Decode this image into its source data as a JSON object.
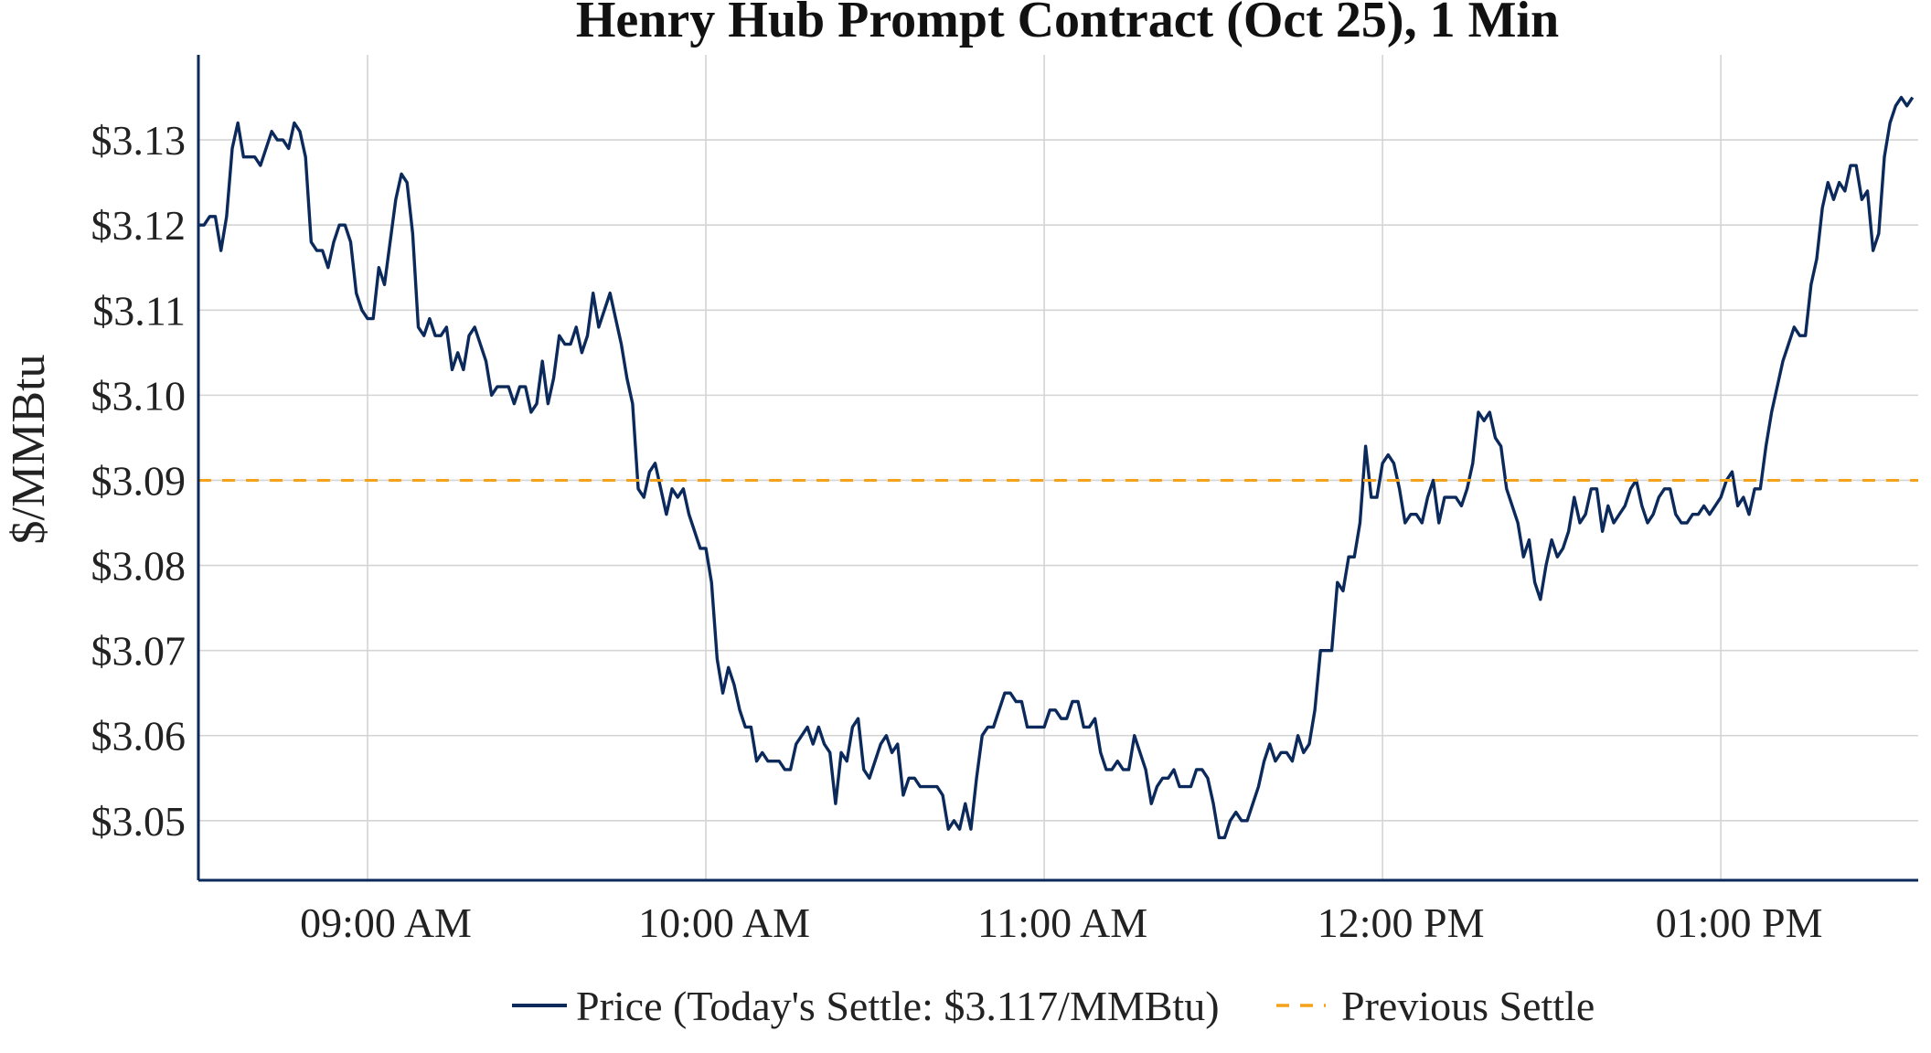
{
  "chart_data": {
    "type": "line",
    "title": "Henry Hub Prompt Contract (Oct 25), 1 Min",
    "xlabel": "",
    "ylabel": "$/MMBtu",
    "x_ticks": [
      "09:00 AM",
      "10:00 AM",
      "11:00 AM",
      "12:00 PM",
      "01:00 PM"
    ],
    "x_tick_minutes": [
      540,
      600,
      660,
      720,
      780
    ],
    "xlim_minutes": [
      510,
      815
    ],
    "y_ticks": [
      3.05,
      3.06,
      3.07,
      3.08,
      3.09,
      3.1,
      3.11,
      3.12,
      3.13
    ],
    "y_tick_labels": [
      "$3.05",
      "$3.06",
      "$3.07",
      "$3.08",
      "$3.09",
      "$3.10",
      "$3.11",
      "$3.12",
      "$3.13"
    ],
    "ylim": [
      3.043,
      3.14
    ],
    "grid": true,
    "legend_position": "bottom-center",
    "series": [
      {
        "name": "Price (Today's Settle: $3.117/MMBtu)",
        "color": "#0b2a5b",
        "style": "solid",
        "points": [
          [
            510,
            3.12
          ],
          [
            511,
            3.12
          ],
          [
            512,
            3.121
          ],
          [
            513,
            3.121
          ],
          [
            514,
            3.117
          ],
          [
            515,
            3.121
          ],
          [
            516,
            3.129
          ],
          [
            517,
            3.132
          ],
          [
            518,
            3.128
          ],
          [
            519,
            3.128
          ],
          [
            520,
            3.128
          ],
          [
            521,
            3.127
          ],
          [
            522,
            3.129
          ],
          [
            523,
            3.131
          ],
          [
            524,
            3.13
          ],
          [
            525,
            3.13
          ],
          [
            526,
            3.129
          ],
          [
            527,
            3.132
          ],
          [
            528,
            3.131
          ],
          [
            529,
            3.128
          ],
          [
            530,
            3.118
          ],
          [
            531,
            3.117
          ],
          [
            532,
            3.117
          ],
          [
            533,
            3.115
          ],
          [
            534,
            3.118
          ],
          [
            535,
            3.12
          ],
          [
            536,
            3.12
          ],
          [
            537,
            3.118
          ],
          [
            538,
            3.112
          ],
          [
            539,
            3.11
          ],
          [
            540,
            3.109
          ],
          [
            541,
            3.109
          ],
          [
            542,
            3.115
          ],
          [
            543,
            3.113
          ],
          [
            544,
            3.118
          ],
          [
            545,
            3.123
          ],
          [
            546,
            3.126
          ],
          [
            547,
            3.125
          ],
          [
            548,
            3.119
          ],
          [
            549,
            3.108
          ],
          [
            550,
            3.107
          ],
          [
            551,
            3.109
          ],
          [
            552,
            3.107
          ],
          [
            553,
            3.107
          ],
          [
            554,
            3.108
          ],
          [
            555,
            3.103
          ],
          [
            556,
            3.105
          ],
          [
            557,
            3.103
          ],
          [
            558,
            3.107
          ],
          [
            559,
            3.108
          ],
          [
            560,
            3.106
          ],
          [
            561,
            3.104
          ],
          [
            562,
            3.1
          ],
          [
            563,
            3.101
          ],
          [
            564,
            3.101
          ],
          [
            565,
            3.101
          ],
          [
            566,
            3.099
          ],
          [
            567,
            3.101
          ],
          [
            568,
            3.101
          ],
          [
            569,
            3.098
          ],
          [
            570,
            3.099
          ],
          [
            571,
            3.104
          ],
          [
            572,
            3.099
          ],
          [
            573,
            3.102
          ],
          [
            574,
            3.107
          ],
          [
            575,
            3.106
          ],
          [
            576,
            3.106
          ],
          [
            577,
            3.108
          ],
          [
            578,
            3.105
          ],
          [
            579,
            3.107
          ],
          [
            580,
            3.112
          ],
          [
            581,
            3.108
          ],
          [
            582,
            3.11
          ],
          [
            583,
            3.112
          ],
          [
            584,
            3.109
          ],
          [
            585,
            3.106
          ],
          [
            586,
            3.102
          ],
          [
            587,
            3.099
          ],
          [
            588,
            3.089
          ],
          [
            589,
            3.088
          ],
          [
            590,
            3.091
          ],
          [
            591,
            3.092
          ],
          [
            592,
            3.089
          ],
          [
            593,
            3.086
          ],
          [
            594,
            3.089
          ],
          [
            595,
            3.088
          ],
          [
            596,
            3.089
          ],
          [
            597,
            3.086
          ],
          [
            598,
            3.084
          ],
          [
            599,
            3.082
          ],
          [
            600,
            3.082
          ],
          [
            601,
            3.078
          ],
          [
            602,
            3.069
          ],
          [
            603,
            3.065
          ],
          [
            604,
            3.068
          ],
          [
            605,
            3.066
          ],
          [
            606,
            3.063
          ],
          [
            607,
            3.061
          ],
          [
            608,
            3.061
          ],
          [
            609,
            3.057
          ],
          [
            610,
            3.058
          ],
          [
            611,
            3.057
          ],
          [
            612,
            3.057
          ],
          [
            613,
            3.057
          ],
          [
            614,
            3.056
          ],
          [
            615,
            3.056
          ],
          [
            616,
            3.059
          ],
          [
            617,
            3.06
          ],
          [
            618,
            3.061
          ],
          [
            619,
            3.059
          ],
          [
            620,
            3.061
          ],
          [
            621,
            3.059
          ],
          [
            622,
            3.058
          ],
          [
            623,
            3.052
          ],
          [
            624,
            3.058
          ],
          [
            625,
            3.057
          ],
          [
            626,
            3.061
          ],
          [
            627,
            3.062
          ],
          [
            628,
            3.056
          ],
          [
            629,
            3.055
          ],
          [
            630,
            3.057
          ],
          [
            631,
            3.059
          ],
          [
            632,
            3.06
          ],
          [
            633,
            3.058
          ],
          [
            634,
            3.059
          ],
          [
            635,
            3.053
          ],
          [
            636,
            3.055
          ],
          [
            637,
            3.055
          ],
          [
            638,
            3.054
          ],
          [
            639,
            3.054
          ],
          [
            640,
            3.054
          ],
          [
            641,
            3.054
          ],
          [
            642,
            3.053
          ],
          [
            643,
            3.049
          ],
          [
            644,
            3.05
          ],
          [
            645,
            3.049
          ],
          [
            646,
            3.052
          ],
          [
            647,
            3.049
          ],
          [
            648,
            3.055
          ],
          [
            649,
            3.06
          ],
          [
            650,
            3.061
          ],
          [
            651,
            3.061
          ],
          [
            652,
            3.063
          ],
          [
            653,
            3.065
          ],
          [
            654,
            3.065
          ],
          [
            655,
            3.064
          ],
          [
            656,
            3.064
          ],
          [
            657,
            3.061
          ],
          [
            658,
            3.061
          ],
          [
            659,
            3.061
          ],
          [
            660,
            3.061
          ],
          [
            661,
            3.063
          ],
          [
            662,
            3.063
          ],
          [
            663,
            3.062
          ],
          [
            664,
            3.062
          ],
          [
            665,
            3.064
          ],
          [
            666,
            3.064
          ],
          [
            667,
            3.061
          ],
          [
            668,
            3.061
          ],
          [
            669,
            3.062
          ],
          [
            670,
            3.058
          ],
          [
            671,
            3.056
          ],
          [
            672,
            3.056
          ],
          [
            673,
            3.057
          ],
          [
            674,
            3.056
          ],
          [
            675,
            3.056
          ],
          [
            676,
            3.06
          ],
          [
            677,
            3.058
          ],
          [
            678,
            3.056
          ],
          [
            679,
            3.052
          ],
          [
            680,
            3.054
          ],
          [
            681,
            3.055
          ],
          [
            682,
            3.055
          ],
          [
            683,
            3.056
          ],
          [
            684,
            3.054
          ],
          [
            685,
            3.054
          ],
          [
            686,
            3.054
          ],
          [
            687,
            3.056
          ],
          [
            688,
            3.056
          ],
          [
            689,
            3.055
          ],
          [
            690,
            3.052
          ],
          [
            691,
            3.048
          ],
          [
            692,
            3.048
          ],
          [
            693,
            3.05
          ],
          [
            694,
            3.051
          ],
          [
            695,
            3.05
          ],
          [
            696,
            3.05
          ],
          [
            697,
            3.052
          ],
          [
            698,
            3.054
          ],
          [
            699,
            3.057
          ],
          [
            700,
            3.059
          ],
          [
            701,
            3.057
          ],
          [
            702,
            3.058
          ],
          [
            703,
            3.058
          ],
          [
            704,
            3.057
          ],
          [
            705,
            3.06
          ],
          [
            706,
            3.058
          ],
          [
            707,
            3.059
          ],
          [
            708,
            3.063
          ],
          [
            709,
            3.07
          ],
          [
            710,
            3.07
          ],
          [
            711,
            3.07
          ],
          [
            712,
            3.078
          ],
          [
            713,
            3.077
          ],
          [
            714,
            3.081
          ],
          [
            715,
            3.081
          ],
          [
            716,
            3.085
          ],
          [
            717,
            3.094
          ],
          [
            718,
            3.088
          ],
          [
            719,
            3.088
          ],
          [
            720,
            3.092
          ],
          [
            721,
            3.093
          ],
          [
            722,
            3.092
          ],
          [
            723,
            3.089
          ],
          [
            724,
            3.085
          ],
          [
            725,
            3.086
          ],
          [
            726,
            3.086
          ],
          [
            727,
            3.085
          ],
          [
            728,
            3.088
          ],
          [
            729,
            3.09
          ],
          [
            730,
            3.085
          ],
          [
            731,
            3.088
          ],
          [
            732,
            3.088
          ],
          [
            733,
            3.088
          ],
          [
            734,
            3.087
          ],
          [
            735,
            3.089
          ],
          [
            736,
            3.092
          ],
          [
            737,
            3.098
          ],
          [
            738,
            3.097
          ],
          [
            739,
            3.098
          ],
          [
            740,
            3.095
          ],
          [
            741,
            3.094
          ],
          [
            742,
            3.089
          ],
          [
            743,
            3.087
          ],
          [
            744,
            3.085
          ],
          [
            745,
            3.081
          ],
          [
            746,
            3.083
          ],
          [
            747,
            3.078
          ],
          [
            748,
            3.076
          ],
          [
            749,
            3.08
          ],
          [
            750,
            3.083
          ],
          [
            751,
            3.081
          ],
          [
            752,
            3.082
          ],
          [
            753,
            3.084
          ],
          [
            754,
            3.088
          ],
          [
            755,
            3.085
          ],
          [
            756,
            3.086
          ],
          [
            757,
            3.089
          ],
          [
            758,
            3.089
          ],
          [
            759,
            3.084
          ],
          [
            760,
            3.087
          ],
          [
            761,
            3.085
          ],
          [
            762,
            3.086
          ],
          [
            763,
            3.087
          ],
          [
            764,
            3.089
          ],
          [
            765,
            3.09
          ],
          [
            766,
            3.087
          ],
          [
            767,
            3.085
          ],
          [
            768,
            3.086
          ],
          [
            769,
            3.088
          ],
          [
            770,
            3.089
          ],
          [
            771,
            3.089
          ],
          [
            772,
            3.086
          ],
          [
            773,
            3.085
          ],
          [
            774,
            3.085
          ],
          [
            775,
            3.086
          ],
          [
            776,
            3.086
          ],
          [
            777,
            3.087
          ],
          [
            778,
            3.086
          ],
          [
            779,
            3.087
          ],
          [
            780,
            3.088
          ],
          [
            781,
            3.09
          ],
          [
            782,
            3.091
          ],
          [
            783,
            3.087
          ],
          [
            784,
            3.088
          ],
          [
            785,
            3.086
          ],
          [
            786,
            3.089
          ],
          [
            787,
            3.089
          ],
          [
            788,
            3.094
          ],
          [
            789,
            3.098
          ],
          [
            790,
            3.101
          ],
          [
            791,
            3.104
          ],
          [
            792,
            3.106
          ],
          [
            793,
            3.108
          ],
          [
            794,
            3.107
          ],
          [
            795,
            3.107
          ],
          [
            796,
            3.113
          ],
          [
            797,
            3.116
          ],
          [
            798,
            3.122
          ],
          [
            799,
            3.125
          ],
          [
            800,
            3.123
          ],
          [
            801,
            3.125
          ],
          [
            802,
            3.124
          ],
          [
            803,
            3.127
          ],
          [
            804,
            3.127
          ],
          [
            805,
            3.123
          ],
          [
            806,
            3.124
          ],
          [
            807,
            3.117
          ],
          [
            808,
            3.119
          ],
          [
            809,
            3.128
          ],
          [
            810,
            3.132
          ],
          [
            811,
            3.134
          ],
          [
            812,
            3.135
          ],
          [
            813,
            3.134
          ],
          [
            814,
            3.135
          ]
        ]
      },
      {
        "name": "Previous Settle",
        "color": "#f5a21b",
        "style": "dashed",
        "y": 3.09
      }
    ]
  }
}
